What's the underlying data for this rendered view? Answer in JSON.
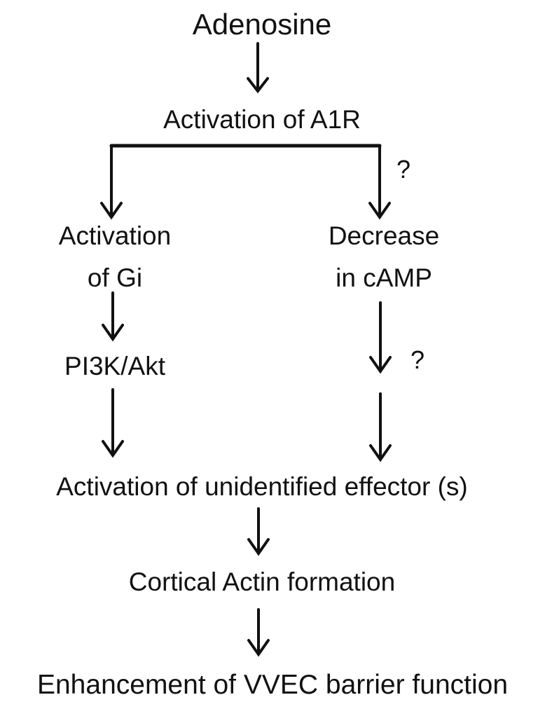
{
  "diagram": {
    "title": "Adenosine",
    "nodes": {
      "a1r": "Activation of A1R",
      "gi_line1": "Activation",
      "gi_line2": "of Gi",
      "camp_line1": "Decrease",
      "camp_line2": "in cAMP",
      "pi3k": "PI3K/Akt",
      "effector": "Activation of unidentified effector (s)",
      "actin": "Cortical Actin formation",
      "barrier": "Enhancement of VVEC barrier function"
    },
    "uncertain_marks": [
      "?",
      "?"
    ],
    "colors": {
      "text": "#111111",
      "arrow": "#111111",
      "background": "#ffffff"
    }
  }
}
